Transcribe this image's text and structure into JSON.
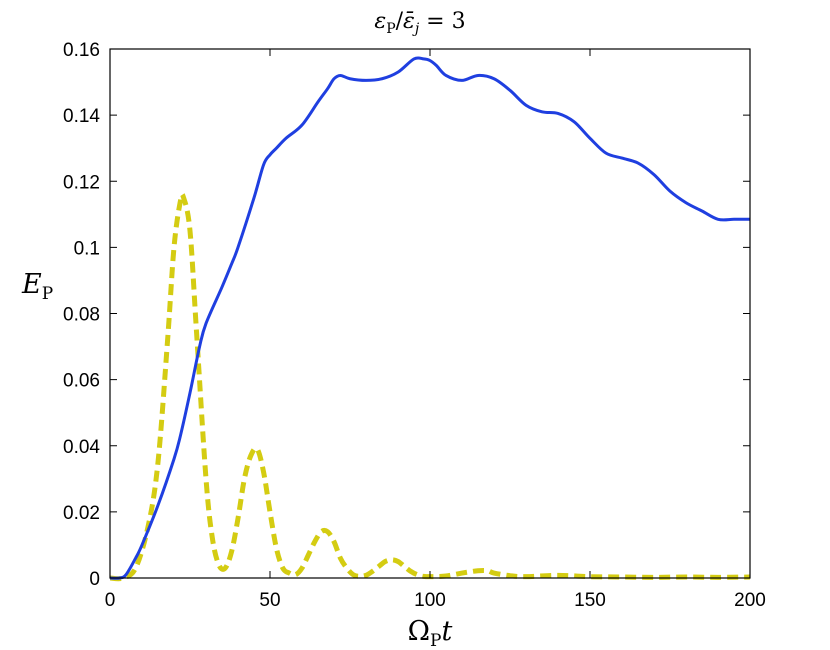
{
  "chart_data": {
    "type": "line",
    "title": {
      "main": "ε",
      "sub": "P",
      "sep": "/",
      "main2": "ε̄",
      "sub2": "j",
      "rest": " = 3"
    },
    "xlabel": {
      "main": "Ω",
      "sub": "P",
      "rest": "t"
    },
    "ylabel": {
      "main": "E",
      "sub": "P"
    },
    "xlim": [
      0,
      200
    ],
    "ylim": [
      0,
      0.16
    ],
    "xticks": [
      0,
      50,
      100,
      150,
      200
    ],
    "xtick_labels": [
      "0",
      "50",
      "100",
      "150",
      "200"
    ],
    "yticks": [
      0,
      0.02,
      0.04,
      0.06,
      0.08,
      0.1,
      0.12,
      0.14,
      0.16
    ],
    "ytick_labels": [
      "0",
      "0.02",
      "0.04",
      "0.06",
      "0.08",
      "0.1",
      "0.12",
      "0.14",
      "0.16"
    ],
    "grid": false,
    "legend": false,
    "series": [
      {
        "color": "#1f3fe0",
        "style": "solid",
        "x": [
          0,
          3,
          5,
          8,
          10,
          15,
          20,
          22,
          25,
          28,
          30,
          35,
          38,
          40,
          45,
          48,
          50,
          52,
          55,
          60,
          65,
          68,
          70,
          72,
          75,
          80,
          85,
          90,
          95,
          98,
          100,
          102,
          105,
          110,
          115,
          120,
          125,
          130,
          135,
          140,
          145,
          150,
          155,
          160,
          165,
          170,
          175,
          180,
          185,
          190,
          195,
          200
        ],
        "y": [
          0,
          0,
          0.001,
          0.006,
          0.01,
          0.022,
          0.036,
          0.043,
          0.056,
          0.07,
          0.077,
          0.088,
          0.095,
          0.1,
          0.115,
          0.125,
          0.128,
          0.13,
          0.133,
          0.137,
          0.144,
          0.148,
          0.151,
          0.152,
          0.151,
          0.1505,
          0.151,
          0.153,
          0.157,
          0.157,
          0.1565,
          0.155,
          0.152,
          0.1505,
          0.152,
          0.151,
          0.1475,
          0.143,
          0.141,
          0.1405,
          0.138,
          0.133,
          0.1285,
          0.127,
          0.1255,
          0.122,
          0.117,
          0.1135,
          0.111,
          0.1085,
          0.1085,
          0.1085
        ]
      },
      {
        "color": "#d4cc12",
        "style": "dashed",
        "x": [
          0,
          4,
          8,
          12,
          15,
          18,
          20,
          22,
          23,
          25,
          27,
          30,
          32,
          34,
          36,
          38,
          40,
          42,
          44,
          46,
          48,
          50,
          52,
          54,
          56,
          58,
          60,
          62,
          64,
          66,
          68,
          70,
          72,
          74,
          76,
          78,
          80,
          82,
          84,
          86,
          88,
          90,
          92,
          94,
          96,
          98,
          100,
          105,
          110,
          115,
          118,
          120,
          125,
          130,
          140,
          150,
          160,
          170,
          180,
          190,
          200
        ],
        "y": [
          0,
          0,
          0.003,
          0.016,
          0.035,
          0.072,
          0.1,
          0.114,
          0.115,
          0.105,
          0.075,
          0.03,
          0.012,
          0.004,
          0.003,
          0.008,
          0.018,
          0.03,
          0.037,
          0.039,
          0.032,
          0.02,
          0.009,
          0.003,
          0.0015,
          0.001,
          0.003,
          0.007,
          0.011,
          0.014,
          0.014,
          0.011,
          0.006,
          0.003,
          0.001,
          0.0005,
          0.0008,
          0.002,
          0.0035,
          0.005,
          0.0055,
          0.005,
          0.0035,
          0.002,
          0.001,
          0.0005,
          0.0004,
          0.0006,
          0.0015,
          0.0022,
          0.0022,
          0.0015,
          0.0007,
          0.0004,
          0.0008,
          0.0004,
          0.0003,
          0.0002,
          0.0003,
          0.0002,
          0.0003
        ]
      }
    ]
  }
}
